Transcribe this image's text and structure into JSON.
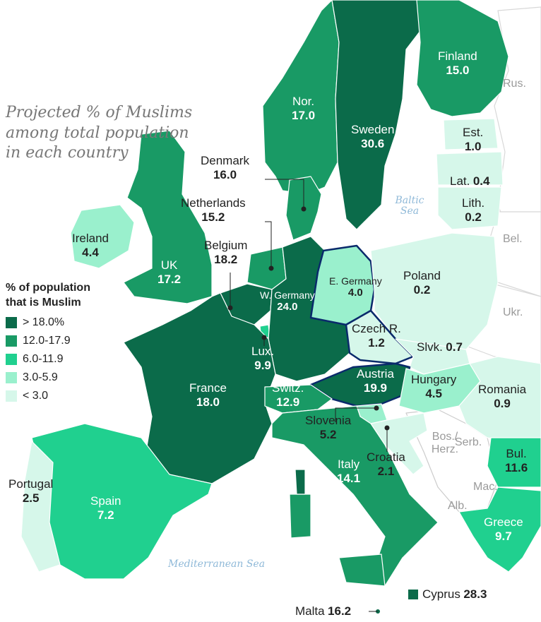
{
  "title": "Projected % of Muslims among total population in each country",
  "legend": {
    "title": "% of population that is Muslim",
    "items": [
      {
        "label": "> 18.0%",
        "color": "#0b6b4a"
      },
      {
        "label": "12.0-17.9",
        "color": "#199a65"
      },
      {
        "label": "6.0-11.9",
        "color": "#20d08f"
      },
      {
        "label": "3.0-5.9",
        "color": "#9af0cd"
      },
      {
        "label": "< 3.0",
        "color": "#d6f7ea"
      }
    ]
  },
  "seas": {
    "baltic": "Baltic Sea",
    "mediterranean": "Mediterranean Sea"
  },
  "countries": {
    "finland": {
      "name": "Finland",
      "value": "15.0"
    },
    "norway": {
      "name": "Nor.",
      "value": "17.0"
    },
    "sweden": {
      "name": "Sweden",
      "value": "30.6"
    },
    "estonia": {
      "name": "Est.",
      "value": "1.0"
    },
    "latvia": {
      "name": "Lat.",
      "value": "0.4"
    },
    "lithuania": {
      "name": "Lith.",
      "value": "0.2"
    },
    "denmark": {
      "name": "Denmark",
      "value": "16.0"
    },
    "netherlands": {
      "name": "Netherlands",
      "value": "15.2"
    },
    "belgium": {
      "name": "Belgium",
      "value": "18.2"
    },
    "ireland": {
      "name": "Ireland",
      "value": "4.4"
    },
    "uk": {
      "name": "UK",
      "value": "17.2"
    },
    "w_germany": {
      "name": "W. Germany",
      "value": "24.0"
    },
    "e_germany": {
      "name": "E. Germany",
      "value": "4.0"
    },
    "poland": {
      "name": "Poland",
      "value": "0.2"
    },
    "czech": {
      "name": "Czech R.",
      "value": "1.2"
    },
    "slovakia": {
      "name": "Slvk.",
      "value": "0.7"
    },
    "luxembourg": {
      "name": "Lux.",
      "value": "9.9"
    },
    "france": {
      "name": "France",
      "value": "18.0"
    },
    "switzerland": {
      "name": "Switz.",
      "value": "12.9"
    },
    "austria": {
      "name": "Austria",
      "value": "19.9"
    },
    "hungary": {
      "name": "Hungary",
      "value": "4.5"
    },
    "romania": {
      "name": "Romania",
      "value": "0.9"
    },
    "slovenia": {
      "name": "Slovenia",
      "value": "5.2"
    },
    "croatia": {
      "name": "Croatia",
      "value": "2.1"
    },
    "bulgaria": {
      "name": "Bul.",
      "value": "11.6"
    },
    "italy": {
      "name": "Italy",
      "value": "14.1"
    },
    "portugal": {
      "name": "Portugal",
      "value": "2.5"
    },
    "spain": {
      "name": "Spain",
      "value": "7.2"
    },
    "greece": {
      "name": "Greece",
      "value": "9.7"
    },
    "malta": {
      "name": "Malta",
      "value": "16.2"
    },
    "cyprus": {
      "name": "Cyprus",
      "value": "28.3"
    }
  },
  "other_labels": {
    "russia": "Rus.",
    "belarus": "Bel.",
    "ukraine": "Ukr.",
    "bosnia": "Bos./ Herz.",
    "serbia": "Serb.",
    "macedonia": "Mac.",
    "albania": "Alb."
  }
}
